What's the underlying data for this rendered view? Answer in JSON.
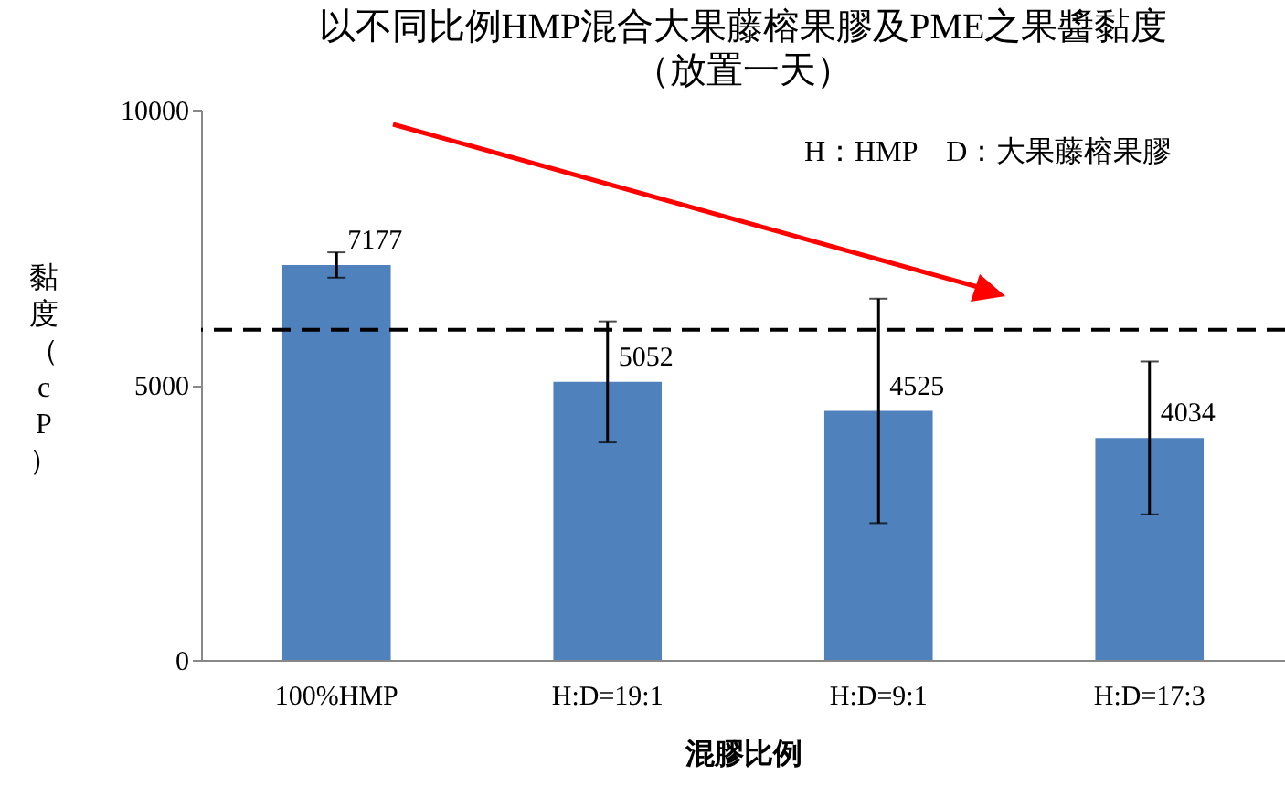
{
  "chart_data": {
    "type": "bar",
    "title": "以不同比例HMP混合大果藤榕果膠及PME之果醬黏度",
    "subtitle": "（放置一天）",
    "xlabel": "混膠比例",
    "ylabel": "黏度（cP）",
    "categories": [
      "100%HMP",
      "H:D=19:1",
      "H:D=9:1",
      "H:D=17:3"
    ],
    "values": [
      7177,
      5052,
      4525,
      4034
    ],
    "errors": [
      230,
      1100,
      2040,
      1390
    ],
    "color": "#4f81bd",
    "ylim": [
      0,
      10000
    ],
    "yticks": [
      0,
      5000,
      10000
    ],
    "grid": false,
    "data_labels": true,
    "ref_lines": [
      {
        "axis": "y",
        "value": 6000,
        "label": null,
        "color": "#000000",
        "line_style": "dashed"
      }
    ],
    "annotations": [
      "H：HMP　D：大果藤榕果膠"
    ]
  }
}
